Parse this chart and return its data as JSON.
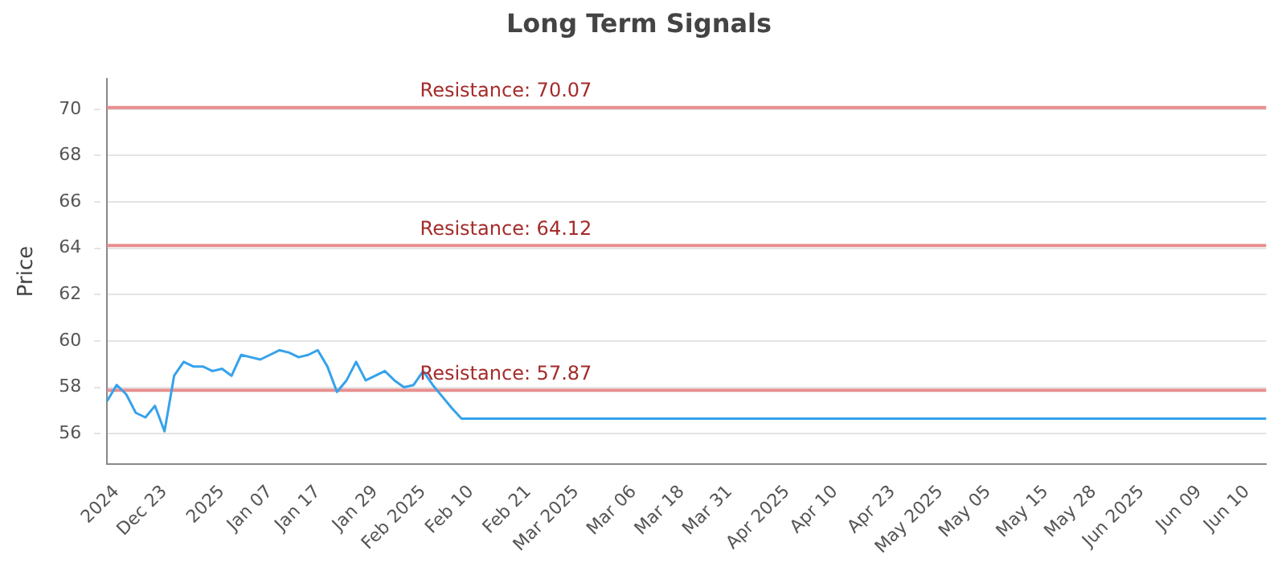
{
  "chart_data": {
    "type": "line",
    "title": "Long Term Signals",
    "ylabel": "Price",
    "categories": [
      null,
      "2024",
      null,
      null,
      null,
      null,
      "Dec 23",
      null,
      null,
      null,
      null,
      null,
      "2025",
      null,
      null,
      null,
      null,
      "Jan 07",
      null,
      null,
      null,
      null,
      "Jan 17",
      null,
      null,
      null,
      null,
      null,
      "Jan 29",
      null,
      null,
      null,
      null,
      "Feb 2025",
      null,
      null,
      null,
      null,
      "Feb 10",
      null,
      null,
      null,
      null,
      null,
      "Feb 21",
      null,
      null,
      null,
      null,
      "Mar 2025",
      null,
      null,
      null,
      null,
      null,
      "Mar 06",
      null,
      null,
      null,
      null,
      "Mar 18",
      null,
      null,
      null,
      null,
      "Mar 31",
      null,
      null,
      null,
      null,
      null,
      "Apr 2025",
      null,
      null,
      null,
      null,
      "Apr 10",
      null,
      null,
      null,
      null,
      null,
      "Apr 23",
      null,
      null,
      null,
      null,
      "May 2025",
      null,
      null,
      null,
      null,
      "May 05",
      null,
      null,
      null,
      null,
      null,
      "May 15",
      null,
      null,
      null,
      null,
      "May 28",
      null,
      null,
      null,
      null,
      "Jun 2025",
      null,
      null,
      null,
      null,
      null,
      "Jun 09",
      null,
      null,
      null,
      null,
      "Jun 10",
      null,
      null
    ],
    "series": [
      {
        "color": "#36a2eb",
        "values": [
          57.4,
          58.1,
          57.7,
          56.9,
          56.7,
          57.2,
          56.1,
          58.5,
          59.1,
          58.9,
          58.9,
          58.7,
          58.8,
          58.5,
          59.4,
          59.3,
          59.2,
          59.4,
          59.6,
          59.5,
          59.3,
          59.4,
          59.6,
          58.9,
          57.8,
          58.3,
          59.1,
          58.3,
          58.5,
          58.7,
          58.3,
          58.0,
          58.1,
          58.7,
          58.1,
          57.6,
          57.1,
          56.65,
          56.65,
          56.65,
          56.65,
          56.65,
          56.65,
          56.65,
          56.65,
          56.65,
          56.65,
          56.65,
          56.65,
          56.65,
          56.65,
          56.65,
          56.65,
          56.65,
          56.65,
          56.65,
          56.65,
          56.65,
          56.65,
          56.65,
          56.65,
          56.65,
          56.65,
          56.65,
          56.65,
          56.65,
          56.65,
          56.65,
          56.65,
          56.65,
          56.65,
          56.65,
          56.65,
          56.65,
          56.65,
          56.65,
          56.65,
          56.65,
          56.65,
          56.65,
          56.65,
          56.65,
          56.65,
          56.65,
          56.65,
          56.65,
          56.65,
          56.65,
          56.65,
          56.65,
          56.65,
          56.65,
          56.65,
          56.65,
          56.65,
          56.65,
          56.65,
          56.65,
          56.65,
          56.65,
          56.65,
          56.65,
          56.65,
          56.65,
          56.65,
          56.65,
          56.65,
          56.65,
          56.65,
          56.65,
          56.65,
          56.65,
          56.65,
          56.65,
          56.65,
          56.65,
          56.65,
          56.65,
          56.65,
          56.65,
          56.65,
          56.65
        ]
      }
    ],
    "ylim": [
      54.7,
      71.3
    ],
    "yticks": [
      56,
      58,
      60,
      62,
      64,
      66,
      68,
      70
    ],
    "ref_lines": [
      {
        "axis": "y",
        "value": 70.07,
        "label": "Resistance: 70.07",
        "color": "#e88f8f"
      },
      {
        "axis": "y",
        "value": 64.12,
        "label": "Resistance: 64.12",
        "color": "#e88f8f"
      },
      {
        "axis": "y",
        "value": 57.87,
        "label": "Resistance: 57.87",
        "color": "#e88f8f"
      }
    ],
    "grid": "y",
    "legend": false,
    "marker": "none",
    "line_style": "solid"
  }
}
